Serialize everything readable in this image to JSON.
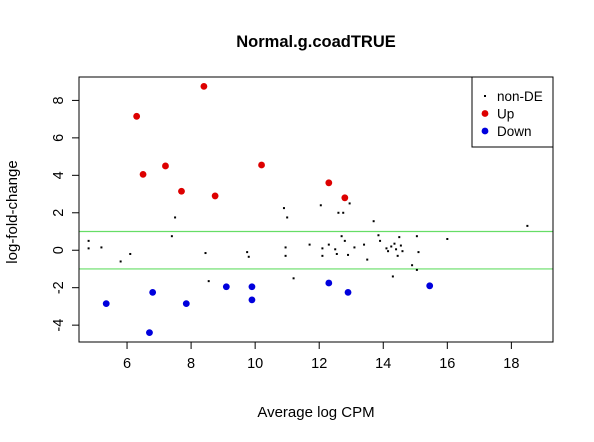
{
  "chart_data": {
    "type": "scatter",
    "title": "Normal.g.coadTRUE",
    "xlabel": "Average log CPM",
    "ylabel": "log-fold-change",
    "xlim": [
      4.5,
      19.3
    ],
    "ylim": [
      -4.9,
      9.25
    ],
    "xticks": [
      6,
      8,
      10,
      12,
      14,
      16,
      18
    ],
    "yticks": [
      -4,
      -2,
      0,
      2,
      4,
      6,
      8
    ],
    "hlines": [
      1,
      -1
    ],
    "hline_color": "#66dd66",
    "legend_position": "top-right",
    "series": [
      {
        "name": "non-DE",
        "color": "#000000",
        "marker": "dot",
        "points": [
          [
            4.8,
            0.5
          ],
          [
            4.8,
            0.1
          ],
          [
            5.2,
            0.15
          ],
          [
            5.8,
            -0.6
          ],
          [
            6.1,
            -0.2
          ],
          [
            7.4,
            0.75
          ],
          [
            7.5,
            1.75
          ],
          [
            8.45,
            -0.15
          ],
          [
            8.55,
            -1.65
          ],
          [
            9.75,
            -0.1
          ],
          [
            9.8,
            -0.35
          ],
          [
            10.9,
            2.25
          ],
          [
            10.95,
            0.15
          ],
          [
            11.0,
            1.75
          ],
          [
            10.95,
            -0.3
          ],
          [
            11.2,
            -1.5
          ],
          [
            11.7,
            0.3
          ],
          [
            12.05,
            2.4
          ],
          [
            12.1,
            0.1
          ],
          [
            12.1,
            -0.3
          ],
          [
            12.3,
            0.3
          ],
          [
            12.5,
            0.05
          ],
          [
            12.55,
            -0.2
          ],
          [
            12.6,
            2.0
          ],
          [
            12.7,
            0.75
          ],
          [
            12.75,
            2.0
          ],
          [
            12.8,
            0.5
          ],
          [
            12.9,
            -0.25
          ],
          [
            12.95,
            2.5
          ],
          [
            13.1,
            0.15
          ],
          [
            13.4,
            0.3
          ],
          [
            13.5,
            -0.5
          ],
          [
            13.7,
            1.55
          ],
          [
            13.85,
            0.8
          ],
          [
            13.9,
            0.5
          ],
          [
            14.1,
            0.1
          ],
          [
            14.15,
            -0.05
          ],
          [
            14.25,
            0.2
          ],
          [
            14.3,
            -1.4
          ],
          [
            14.35,
            0.35
          ],
          [
            14.4,
            0.05
          ],
          [
            14.45,
            -0.3
          ],
          [
            14.5,
            0.7
          ],
          [
            14.55,
            0.25
          ],
          [
            14.6,
            -0.05
          ],
          [
            14.9,
            -0.8
          ],
          [
            15.05,
            0.75
          ],
          [
            15.1,
            -0.1
          ],
          [
            15.05,
            -1.05
          ],
          [
            16.0,
            0.6
          ],
          [
            18.5,
            1.3
          ]
        ]
      },
      {
        "name": "Up",
        "color": "#dd0000",
        "marker": "filled-circle",
        "points": [
          [
            6.3,
            7.15
          ],
          [
            6.5,
            4.05
          ],
          [
            7.2,
            4.5
          ],
          [
            7.7,
            3.15
          ],
          [
            8.4,
            8.75
          ],
          [
            8.75,
            2.9
          ],
          [
            10.2,
            4.55
          ],
          [
            12.3,
            3.6
          ],
          [
            12.8,
            2.8
          ]
        ]
      },
      {
        "name": "Down",
        "color": "#0000dd",
        "marker": "filled-circle",
        "points": [
          [
            5.35,
            -2.85
          ],
          [
            6.7,
            -4.4
          ],
          [
            6.8,
            -2.25
          ],
          [
            7.85,
            -2.85
          ],
          [
            9.1,
            -1.95
          ],
          [
            9.9,
            -1.95
          ],
          [
            9.9,
            -2.65
          ],
          [
            12.3,
            -1.75
          ],
          [
            12.9,
            -2.25
          ],
          [
            15.45,
            -1.9
          ]
        ]
      }
    ]
  }
}
